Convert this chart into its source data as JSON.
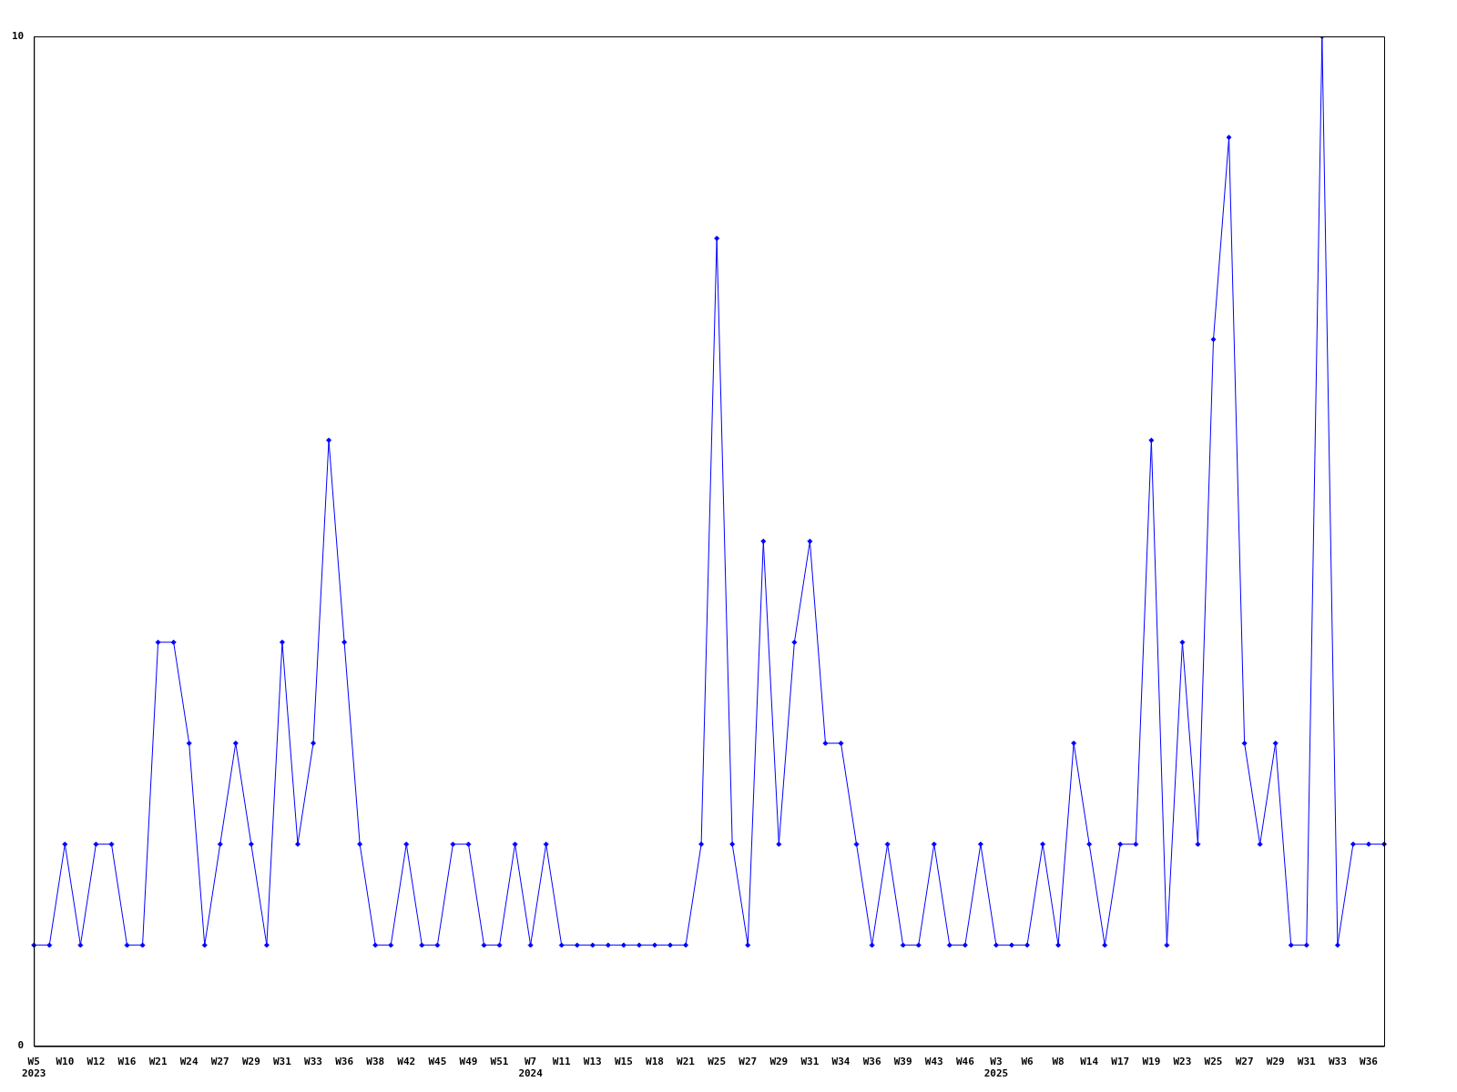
{
  "chart_data": {
    "type": "line",
    "categories": [
      "W5\n2023",
      null,
      "W10",
      null,
      "W12",
      null,
      "W16",
      null,
      "W21",
      null,
      "W24",
      null,
      "W27",
      null,
      "W29",
      null,
      "W31",
      null,
      "W33",
      null,
      "W36",
      null,
      "W38",
      null,
      "W42",
      null,
      "W45",
      null,
      "W49",
      null,
      "W51",
      null,
      "W7\n2024",
      null,
      "W11",
      null,
      "W13",
      null,
      "W15",
      null,
      "W18",
      null,
      "W21",
      null,
      "W25",
      null,
      "W27",
      null,
      "W29",
      null,
      "W31",
      null,
      "W34",
      null,
      "W36",
      null,
      "W39",
      null,
      "W43",
      null,
      "W46",
      null,
      "W3\n2025",
      null,
      "W6",
      null,
      "W8",
      null,
      "W14",
      null,
      "W17",
      null,
      "W19",
      null,
      "W23",
      null,
      "W25",
      null,
      "W27",
      null,
      "W29",
      null,
      "W31",
      null,
      "W33",
      null,
      "W36",
      null
    ],
    "series": [
      {
        "color": "#0000ff",
        "values": [
          1,
          1,
          2,
          1,
          2,
          2,
          1,
          1,
          4,
          4,
          3,
          1,
          2,
          3,
          2,
          1,
          4,
          2,
          3,
          6,
          4,
          2,
          1,
          1,
          2,
          1,
          1,
          2,
          2,
          1,
          1,
          2,
          1,
          2,
          1,
          1,
          1,
          1,
          1,
          1,
          1,
          1,
          1,
          2,
          8,
          2,
          1,
          5,
          2,
          4,
          5,
          3,
          3,
          2,
          1,
          2,
          1,
          1,
          2,
          1,
          1,
          2,
          1,
          1,
          1,
          2,
          1,
          3,
          2,
          1,
          2,
          2,
          6,
          1,
          4,
          2,
          7,
          9,
          3,
          2,
          3,
          1,
          1,
          10,
          1,
          2,
          2,
          2
        ]
      }
    ],
    "ylim": [
      0,
      10
    ],
    "yticks": [
      0,
      10
    ],
    "grid": false,
    "legend": false,
    "marker": "diamond",
    "line_style": "solid"
  }
}
